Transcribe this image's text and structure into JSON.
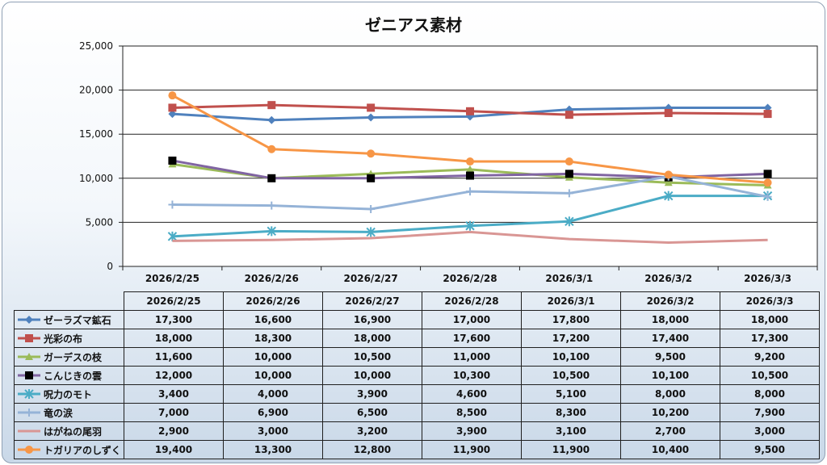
{
  "chart_data": {
    "type": "line",
    "title": "ゼニアス素材",
    "xlabel": "",
    "ylabel": "",
    "ylim": [
      0,
      25000
    ],
    "yticks": [
      "0",
      "5,000",
      "10,000",
      "15,000",
      "20,000",
      "25,000"
    ],
    "ytick_values": [
      0,
      5000,
      10000,
      15000,
      20000,
      25000
    ],
    "grid": "horizontal",
    "legend": "data table",
    "categories": [
      "2026/2/25",
      "2026/2/26",
      "2026/2/27",
      "2026/2/28",
      "2026/3/1",
      "2026/3/2",
      "2026/3/3"
    ],
    "series": [
      {
        "name": "ゼーラズマ鉱石",
        "color": "#4f81bd",
        "marker": "diamond",
        "values": [
          17300,
          16600,
          16900,
          17000,
          17800,
          18000,
          18000
        ],
        "labels": [
          "17,300",
          "16,600",
          "16,900",
          "17,000",
          "17,800",
          "18,000",
          "18,000"
        ]
      },
      {
        "name": "光彩の布",
        "color": "#c0504d",
        "marker": "square",
        "values": [
          18000,
          18300,
          18000,
          17600,
          17200,
          17400,
          17300
        ],
        "labels": [
          "18,000",
          "18,300",
          "18,000",
          "17,600",
          "17,200",
          "17,400",
          "17,300"
        ]
      },
      {
        "name": "ガーデスの枝",
        "color": "#9bbb59",
        "marker": "triangle",
        "values": [
          11600,
          10000,
          10500,
          11000,
          10100,
          9500,
          9200
        ],
        "labels": [
          "11,600",
          "10,000",
          "10,500",
          "11,000",
          "10,100",
          "9,500",
          "9,200"
        ]
      },
      {
        "name": "こんじきの雲",
        "color": "#8064a2",
        "marker": "blacksquare",
        "values": [
          12000,
          10000,
          10000,
          10300,
          10500,
          10100,
          10500
        ],
        "labels": [
          "12,000",
          "10,000",
          "10,000",
          "10,300",
          "10,500",
          "10,100",
          "10,500"
        ]
      },
      {
        "name": "呪力のモト",
        "color": "#4bacc6",
        "marker": "star",
        "values": [
          3400,
          4000,
          3900,
          4600,
          5100,
          8000,
          8000
        ],
        "labels": [
          "3,400",
          "4,000",
          "3,900",
          "4,600",
          "5,100",
          "8,000",
          "8,000"
        ]
      },
      {
        "name": "竜の涙",
        "color": "#95b3d7",
        "marker": "plus",
        "values": [
          7000,
          6900,
          6500,
          8500,
          8300,
          10200,
          7900
        ],
        "labels": [
          "7,000",
          "6,900",
          "6,500",
          "8,500",
          "8,300",
          "10,200",
          "7,900"
        ]
      },
      {
        "name": "はがねの尾羽",
        "color": "#d99694",
        "marker": "none",
        "values": [
          2900,
          3000,
          3200,
          3900,
          3100,
          2700,
          3000
        ],
        "labels": [
          "2,900",
          "3,000",
          "3,200",
          "3,900",
          "3,100",
          "2,700",
          "3,000"
        ]
      },
      {
        "name": "トガリアのしずく",
        "color": "#f79646",
        "marker": "circle",
        "values": [
          19400,
          13300,
          12800,
          11900,
          11900,
          10400,
          9500
        ],
        "labels": [
          "19,400",
          "13,300",
          "12,800",
          "11,900",
          "11,900",
          "10,400",
          "9,500"
        ]
      }
    ]
  }
}
